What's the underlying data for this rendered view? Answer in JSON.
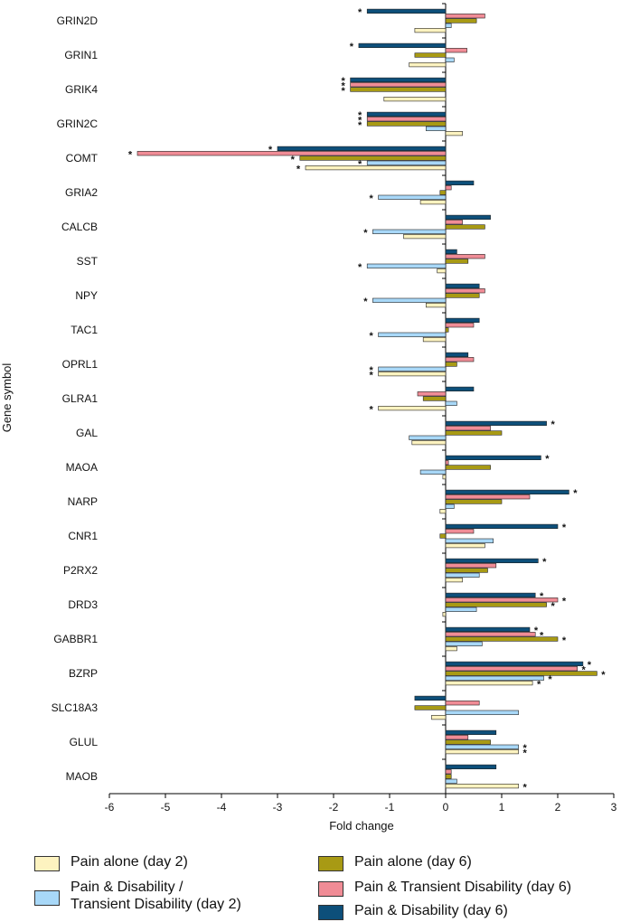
{
  "chart_data": {
    "type": "bar",
    "orientation": "horizontal",
    "xlabel": "Fold change",
    "ylabel": "Gene symbol",
    "xlim": [
      -6,
      3
    ],
    "xticks": [
      "-6",
      "-5",
      "-4",
      "-3",
      "-2",
      "-1",
      "0",
      "1",
      "2",
      "3"
    ],
    "categories": [
      "GRIN2D",
      "GRIN1",
      "GRIK4",
      "GRIN2C",
      "COMT",
      "GRIA2",
      "CALCB",
      "SST",
      "NPY",
      "TAC1",
      "OPRL1",
      "GLRA1",
      "GAL",
      "MAOA",
      "NARP",
      "CNR1",
      "P2RX2",
      "DRD3",
      "GABBR1",
      "BZRP",
      "SLC18A3",
      "GLUL",
      "MAOB"
    ],
    "series": [
      {
        "name": "Pain & Disability (day 6)",
        "color": "#0d4f7a",
        "values": [
          -1.4,
          -1.55,
          -1.7,
          -1.4,
          -3.0,
          0.5,
          0.8,
          0.2,
          0.6,
          0.6,
          0.4,
          0.5,
          1.8,
          1.7,
          2.2,
          2.0,
          1.65,
          1.6,
          1.5,
          2.45,
          -0.55,
          0.9,
          0.9
        ],
        "sig": [
          true,
          true,
          true,
          true,
          true,
          false,
          false,
          false,
          false,
          false,
          false,
          false,
          true,
          true,
          true,
          true,
          true,
          true,
          true,
          true,
          false,
          false,
          false
        ]
      },
      {
        "name": "Pain & Transient Disability (day 6)",
        "color": "#f08c96",
        "values": [
          0.7,
          0.38,
          -1.7,
          -1.4,
          -5.5,
          0.1,
          0.3,
          0.7,
          0.7,
          0.5,
          0.5,
          -0.5,
          0.8,
          0.05,
          1.5,
          0.5,
          0.9,
          2.0,
          1.6,
          2.35,
          0.6,
          0.4,
          0.1
        ],
        "sig": [
          false,
          false,
          true,
          true,
          true,
          false,
          false,
          false,
          false,
          false,
          false,
          false,
          false,
          false,
          false,
          false,
          false,
          true,
          true,
          true,
          false,
          false,
          false
        ]
      },
      {
        "name": "Pain alone (day 6)",
        "color": "#a89a14",
        "values": [
          0.55,
          -0.55,
          -1.7,
          -1.4,
          -2.6,
          -0.1,
          0.7,
          0.4,
          0.6,
          0.05,
          0.2,
          -0.4,
          1.0,
          0.8,
          1.0,
          -0.1,
          0.75,
          1.8,
          2.0,
          2.7,
          -0.55,
          0.8,
          0.1
        ],
        "sig": [
          false,
          false,
          true,
          true,
          true,
          false,
          false,
          false,
          false,
          false,
          false,
          false,
          false,
          false,
          false,
          false,
          false,
          true,
          true,
          true,
          false,
          false,
          false
        ]
      },
      {
        "name": "Pain & Disability /\nTransient Disability  (day 2)",
        "color": "#a8d8f8",
        "values": [
          0.1,
          0.15,
          0.0,
          -0.35,
          -1.4,
          -1.2,
          -1.3,
          -1.4,
          -1.3,
          -1.2,
          -1.2,
          0.2,
          -0.65,
          -0.45,
          0.15,
          0.85,
          0.6,
          0.55,
          0.65,
          1.75,
          1.3,
          1.3,
          0.2
        ],
        "sig": [
          false,
          false,
          false,
          false,
          true,
          true,
          true,
          true,
          true,
          true,
          true,
          false,
          false,
          false,
          false,
          false,
          false,
          false,
          false,
          true,
          false,
          true,
          false
        ]
      },
      {
        "name": "Pain alone (day 2)",
        "color": "#fdf3c0",
        "values": [
          -0.55,
          -0.65,
          -1.1,
          0.3,
          -2.5,
          -0.45,
          -0.75,
          -0.15,
          -0.35,
          -0.4,
          -1.2,
          -1.2,
          -0.6,
          -0.05,
          -0.1,
          0.7,
          0.3,
          -0.05,
          0.2,
          1.55,
          -0.25,
          1.3,
          1.3
        ],
        "sig": [
          false,
          false,
          false,
          false,
          true,
          false,
          false,
          false,
          false,
          false,
          true,
          true,
          false,
          false,
          false,
          false,
          false,
          false,
          false,
          true,
          false,
          true,
          true
        ]
      }
    ]
  },
  "legend": {
    "pain_alone_day2": "Pain alone (day 2)",
    "pain_dis_day2": "Pain & Disability /\nTransient Disability  (day 2)",
    "pain_alone_day6": "Pain alone (day 6)",
    "pain_trans_day6": "Pain & Transient Disability (day 6)",
    "pain_dis_day6": "Pain & Disability (day 6)"
  },
  "colors": {
    "pain_alone_day2": "#fdf3c0",
    "pain_dis_day2": "#a8d8f8",
    "pain_alone_day6": "#a89a14",
    "pain_trans_day6": "#f08c96",
    "pain_dis_day6": "#0d4f7a"
  },
  "significance_marker": "*"
}
